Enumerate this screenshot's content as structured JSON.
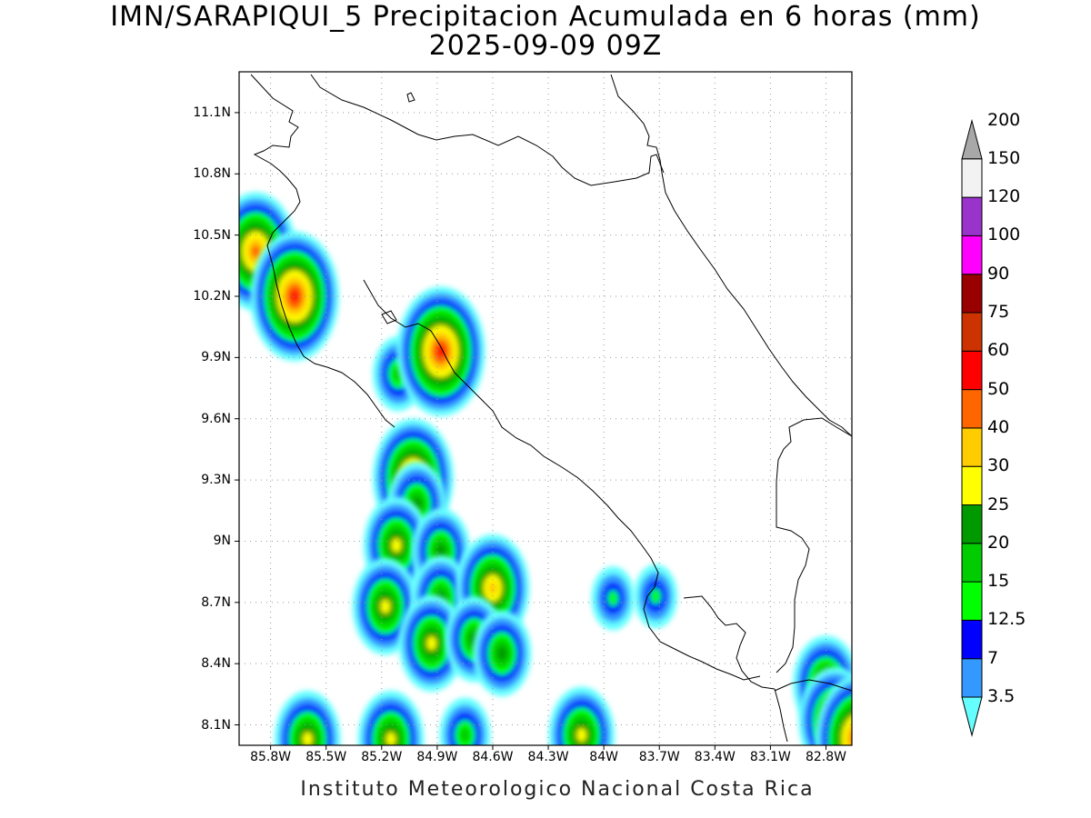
{
  "title": {
    "line1": "IMN/SARAPIQUI_5 Precipitacion Acumulada en 6 horas (mm)",
    "line2": "2025-09-09 09Z"
  },
  "footer": "Instituto Meteorologico Nacional Costa Rica",
  "map": {
    "lat_ticks": [
      {
        "label": "11.1N",
        "value": 11.1
      },
      {
        "label": "10.8N",
        "value": 10.8
      },
      {
        "label": "10.5N",
        "value": 10.5
      },
      {
        "label": "10.2N",
        "value": 10.2
      },
      {
        "label": "9.9N",
        "value": 9.9
      },
      {
        "label": "9.6N",
        "value": 9.6
      },
      {
        "label": "9.3N",
        "value": 9.3
      },
      {
        "label": "9N",
        "value": 9.0
      },
      {
        "label": "8.7N",
        "value": 8.7
      },
      {
        "label": "8.4N",
        "value": 8.4
      },
      {
        "label": "8.1N",
        "value": 8.1
      }
    ],
    "lon_ticks": [
      {
        "label": "85.8W",
        "value": -85.8
      },
      {
        "label": "85.5W",
        "value": -85.5
      },
      {
        "label": "85.2W",
        "value": -85.2
      },
      {
        "label": "84.9W",
        "value": -84.9
      },
      {
        "label": "84.6W",
        "value": -84.6
      },
      {
        "label": "84.3W",
        "value": -84.3
      },
      {
        "label": "84W",
        "value": -84.0
      },
      {
        "label": "83.7W",
        "value": -83.7
      },
      {
        "label": "83.4W",
        "value": -83.4
      },
      {
        "label": "83.1W",
        "value": -83.1
      },
      {
        "label": "82.8W",
        "value": -82.8
      }
    ],
    "lat_range": [
      8.0,
      11.3
    ],
    "lon_range": [
      -85.97,
      -82.66
    ],
    "grid": "dotted"
  },
  "legend": {
    "levels": [
      {
        "label": "3.5",
        "color": "#66ffff"
      },
      {
        "label": "7",
        "color": "#3399ff"
      },
      {
        "label": "12.5",
        "color": "#0000ff"
      },
      {
        "label": "15",
        "color": "#00ff00"
      },
      {
        "label": "20",
        "color": "#00cc00"
      },
      {
        "label": "25",
        "color": "#009900"
      },
      {
        "label": "30",
        "color": "#ffff00"
      },
      {
        "label": "40",
        "color": "#ffcc00"
      },
      {
        "label": "50",
        "color": "#ff6600"
      },
      {
        "label": "60",
        "color": "#ff0000"
      },
      {
        "label": "75",
        "color": "#cc3300"
      },
      {
        "label": "90",
        "color": "#990000"
      },
      {
        "label": "100",
        "color": "#ff00ff"
      },
      {
        "label": "120",
        "color": "#9933cc"
      },
      {
        "label": "150",
        "color": "#f2f2f2"
      },
      {
        "label": "200",
        "color": "#a8a8a8"
      }
    ]
  },
  "rain_cells": [
    {
      "lon": -85.88,
      "lat": 10.42,
      "peak": 9
    },
    {
      "lon": -85.67,
      "lat": 10.2,
      "peak": 10
    },
    {
      "lon": -85.11,
      "lat": 9.82,
      "peak": 5
    },
    {
      "lon": -84.88,
      "lat": 9.93,
      "peak": 10
    },
    {
      "lon": -85.03,
      "lat": 9.31,
      "peak": 9
    },
    {
      "lon": -85.01,
      "lat": 9.18,
      "peak": 6
    },
    {
      "lon": -85.12,
      "lat": 8.98,
      "peak": 7
    },
    {
      "lon": -84.88,
      "lat": 8.95,
      "peak": 6
    },
    {
      "lon": -85.18,
      "lat": 8.68,
      "peak": 7
    },
    {
      "lon": -84.88,
      "lat": 8.72,
      "peak": 6
    },
    {
      "lon": -84.6,
      "lat": 8.77,
      "peak": 8
    },
    {
      "lon": -84.93,
      "lat": 8.5,
      "peak": 7
    },
    {
      "lon": -84.7,
      "lat": 8.52,
      "peak": 6
    },
    {
      "lon": -84.55,
      "lat": 8.45,
      "peak": 6
    },
    {
      "lon": -83.95,
      "lat": 8.72,
      "peak": 4
    },
    {
      "lon": -83.72,
      "lat": 8.73,
      "peak": 4
    },
    {
      "lon": -82.8,
      "lat": 8.3,
      "peak": 7
    },
    {
      "lon": -82.75,
      "lat": 8.12,
      "peak": 8
    },
    {
      "lon": -82.62,
      "lat": 8.03,
      "peak": 10
    },
    {
      "lon": -85.6,
      "lat": 8.03,
      "peak": 7
    },
    {
      "lon": -85.15,
      "lat": 8.03,
      "peak": 7
    },
    {
      "lon": -84.75,
      "lat": 8.05,
      "peak": 5
    },
    {
      "lon": -84.12,
      "lat": 8.05,
      "peak": 7
    }
  ]
}
